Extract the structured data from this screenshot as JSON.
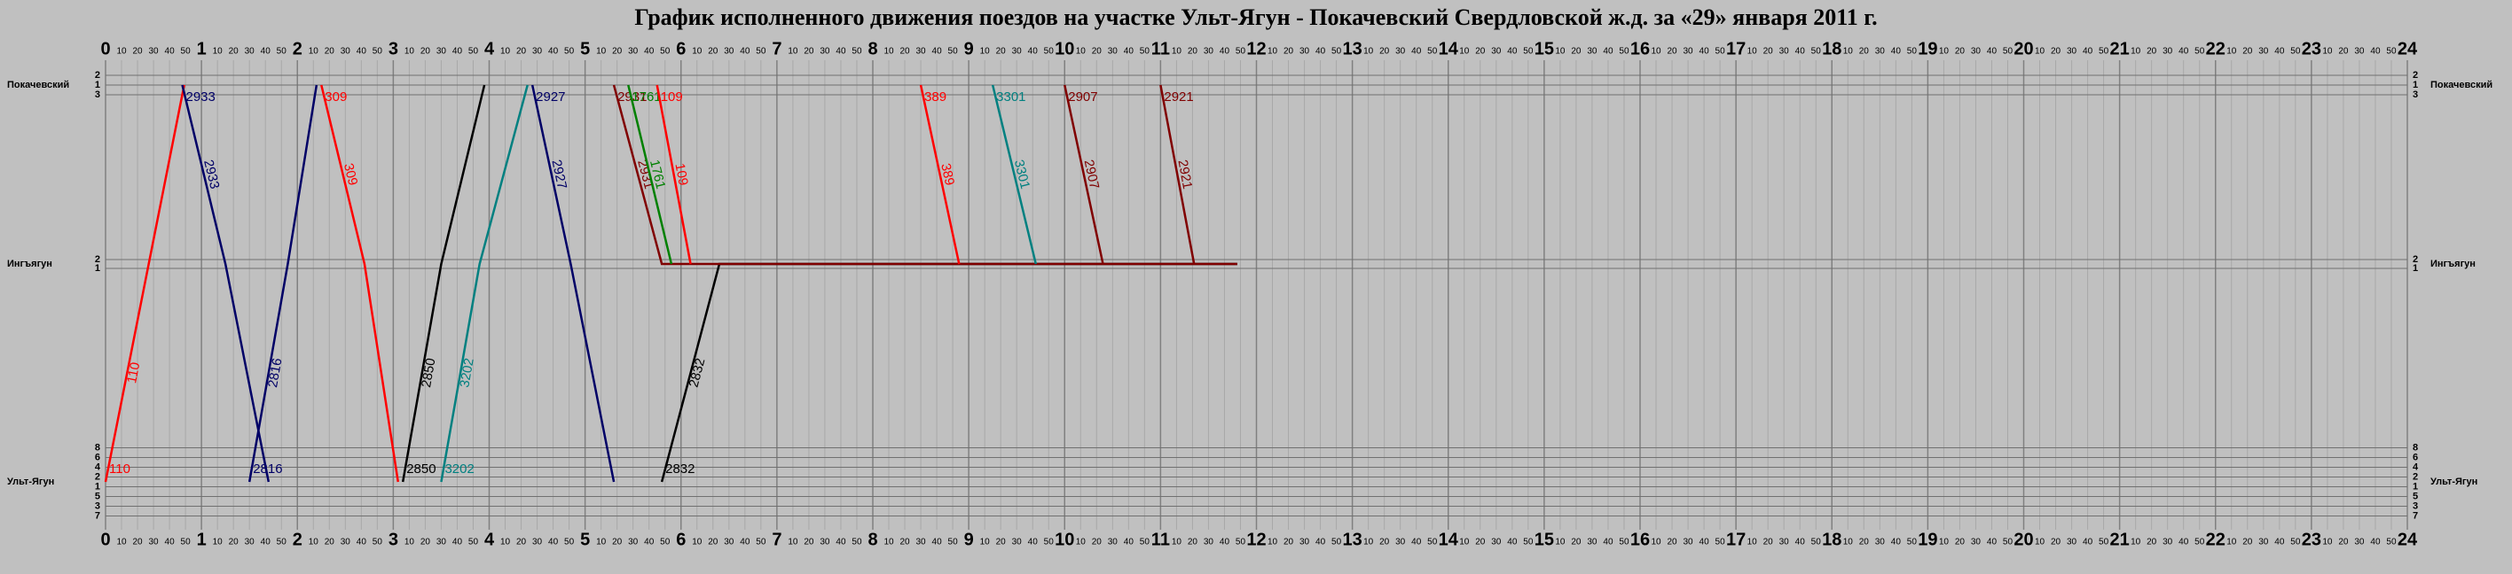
{
  "title": "График исполненного движения поездов на участке Ульт-Ягун - Покачевский  Свердловской ж.д. за «29» января 2011 г.",
  "hours": [
    0,
    1,
    2,
    3,
    4,
    5,
    6,
    7,
    8,
    9,
    10,
    11,
    12,
    13,
    14,
    15,
    16,
    17,
    18,
    19,
    20,
    21,
    22,
    23,
    24
  ],
  "minute_labels": [
    10,
    20,
    30,
    40,
    50
  ],
  "stations": [
    {
      "name": "Покачевский",
      "tracks": [
        "2",
        "1",
        "3"
      ]
    },
    {
      "name": "Ингъягун",
      "tracks": [
        "2",
        "1"
      ]
    },
    {
      "name": "Ульт-Ягун",
      "tracks": [
        "8",
        "6",
        "4",
        "2",
        "1",
        "5",
        "3",
        "7"
      ]
    }
  ],
  "trains": [
    {
      "label": "110",
      "color": "#ff0000",
      "times": [
        0.0,
        0.45,
        0.82
      ],
      "stations": [
        2,
        1,
        0
      ]
    },
    {
      "label": "2933",
      "color": "#000066",
      "times": [
        0.8,
        1.25,
        1.7
      ],
      "stations": [
        0,
        1,
        2
      ]
    },
    {
      "label": "2816",
      "color": "#000066",
      "times": [
        1.5,
        1.9,
        2.2
      ],
      "stations": [
        2,
        1,
        0
      ]
    },
    {
      "label": "309",
      "color": "#ff0000",
      "times": [
        2.25,
        2.7,
        3.05
      ],
      "stations": [
        0,
        1,
        2
      ]
    },
    {
      "label": "2850",
      "color": "#000000",
      "times": [
        3.1,
        3.5,
        3.95
      ],
      "stations": [
        2,
        1,
        0
      ]
    },
    {
      "label": "3202",
      "color": "#008080",
      "times": [
        3.5,
        3.9,
        4.4
      ],
      "stations": [
        2,
        1,
        0
      ]
    },
    {
      "label": "2927",
      "color": "#000066",
      "times": [
        4.45,
        4.85,
        5.3
      ],
      "stations": [
        0,
        1,
        2
      ]
    },
    {
      "label": "2832",
      "color": "#000000",
      "times": [
        5.8,
        6.4,
        11.8
      ],
      "stations": [
        2,
        1,
        1
      ]
    },
    {
      "label": "2931",
      "color": "#800000",
      "times": [
        5.3,
        5.8,
        11.8
      ],
      "stations": [
        0,
        1,
        1
      ]
    },
    {
      "label": "1761",
      "color": "#008000",
      "times": [
        5.45,
        5.9
      ],
      "stations": [
        0,
        1
      ]
    },
    {
      "label": "109",
      "color": "#ff0000",
      "times": [
        5.75,
        6.1
      ],
      "stations": [
        0,
        1
      ]
    },
    {
      "label": "389",
      "color": "#ff0000",
      "times": [
        8.5,
        8.9
      ],
      "stations": [
        0,
        1
      ]
    },
    {
      "label": "3301",
      "color": "#008080",
      "times": [
        9.25,
        9.7
      ],
      "stations": [
        0,
        1
      ]
    },
    {
      "label": "2907",
      "color": "#800000",
      "times": [
        10.0,
        10.4
      ],
      "stations": [
        0,
        1
      ]
    },
    {
      "label": "2921",
      "color": "#800000",
      "times": [
        11.0,
        11.35
      ],
      "stations": [
        0,
        1
      ]
    }
  ]
}
